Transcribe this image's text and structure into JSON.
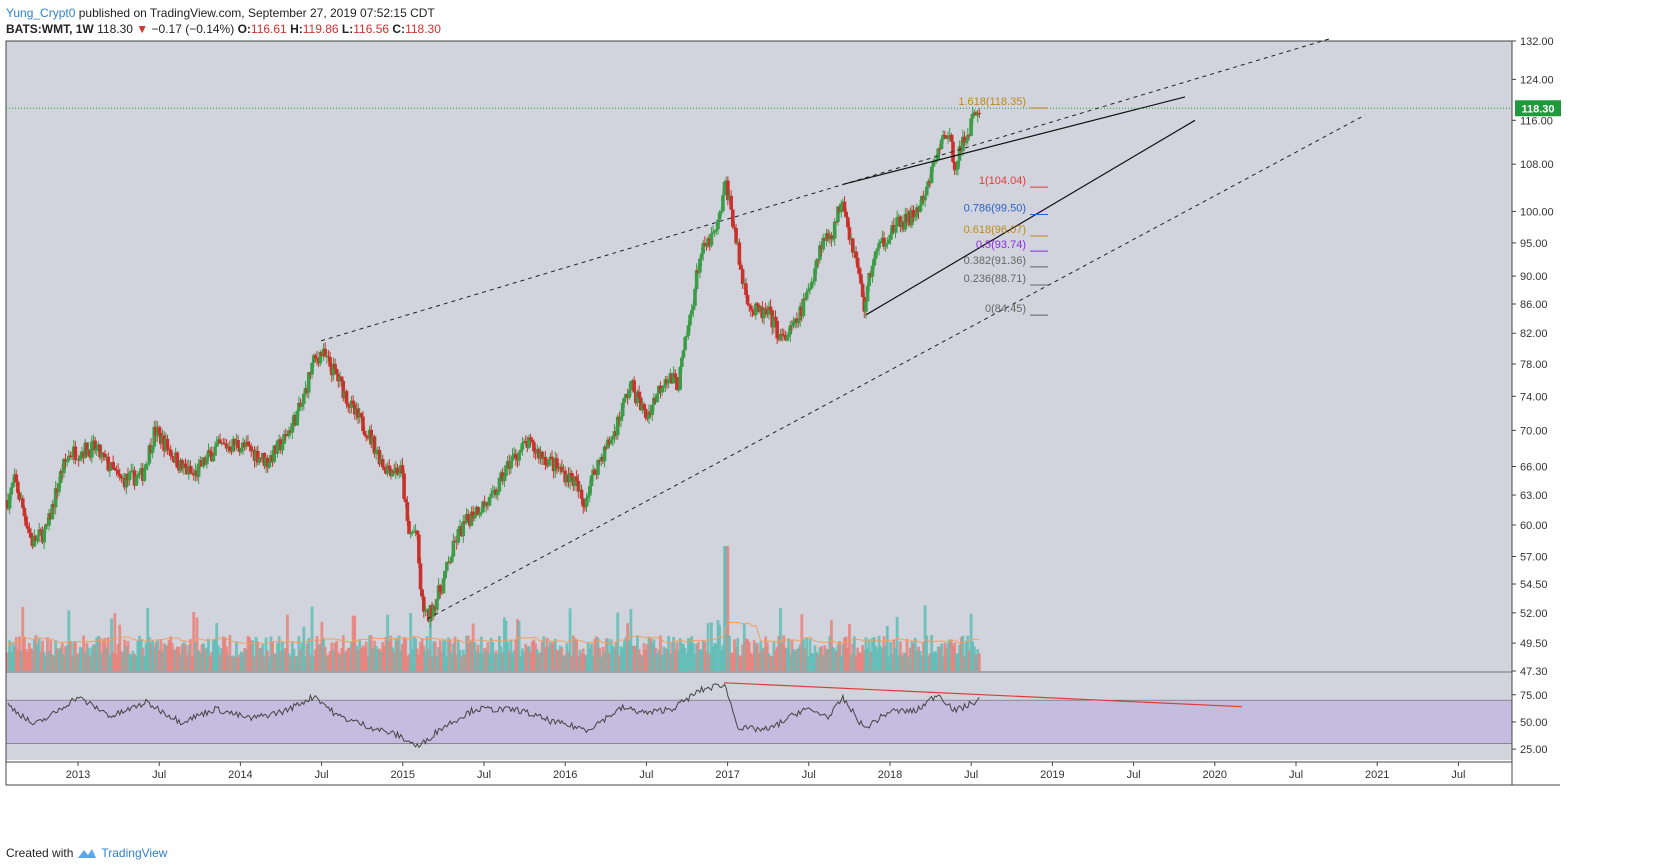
{
  "header": {
    "author": "Yung_Crypt0",
    "published": "published on TradingView.com, September 27, 2019 07:52:15 CDT",
    "symbol": "BATS:WMT, 1W",
    "last": "118.30",
    "change": "−0.17 (−0.14%)",
    "o_label": "O:",
    "o_value": "116.61",
    "h_label": "H:",
    "h_value": "119.86",
    "l_label": "L:",
    "l_value": "116.56",
    "c_label": "C:",
    "c_value": "118.30"
  },
  "footer": {
    "created_with": "Created with",
    "brand": "TradingView"
  },
  "colors": {
    "up": "#3c9c48",
    "down": "#c8322c",
    "vol_up": "#5fbcb6",
    "vol_down": "#e8807a",
    "vol_ma": "#f0a060",
    "rsi": "#444444",
    "rsi_band": "#c5bde0",
    "divergence": "#e53935",
    "price_tag": "#1f9a3c",
    "fib_gold": "#c08a18",
    "fib_red": "#e53935",
    "fib_blue": "#2962c8",
    "fib_purple": "#8a2be2",
    "fib_gray": "#666666"
  },
  "chart_data": {
    "type": "candlestick",
    "scale": "log",
    "ylim": [
      47.3,
      132
    ],
    "price_ticks": [
      "132.00",
      "124.00",
      "116.00",
      "108.00",
      "100.00",
      "95.00",
      "90.00",
      "86.00",
      "82.00",
      "78.00",
      "74.00",
      "70.00",
      "66.00",
      "63.00",
      "60.00",
      "57.00",
      "54.50",
      "52.00",
      "49.50",
      "47.30"
    ],
    "time_labels": [
      "2013",
      "Jul",
      "2014",
      "Jul",
      "2015",
      "Jul",
      "2016",
      "Jul",
      "2017",
      "Jul",
      "2018",
      "Jul",
      "2019",
      "Jul",
      "2020",
      "Jul",
      "2021",
      "Jul"
    ],
    "last_price": "118.30",
    "rsi_ticks": [
      "75.00",
      "50.00",
      "25.00"
    ],
    "rsi_band": [
      30,
      70
    ],
    "fib_levels": [
      {
        "label": "1.618(118.35)",
        "value": 118.35,
        "color": "fib_gold"
      },
      {
        "label": "1(104.04)",
        "value": 104.04,
        "color": "fib_red"
      },
      {
        "label": "0.786(99.50)",
        "value": 99.5,
        "color": "fib_blue"
      },
      {
        "label": "0.618(96.07)",
        "value": 96.07,
        "color": "fib_gold"
      },
      {
        "label": "0.5(93.74)",
        "value": 93.74,
        "color": "fib_purple"
      },
      {
        "label": "0.382(91.36)",
        "value": 91.36,
        "color": "fib_gray"
      },
      {
        "label": "0.236(88.71)",
        "value": 88.71,
        "color": "fib_gray"
      },
      {
        "label": "0(84.45)",
        "value": 84.45,
        "color": "fib_gray"
      }
    ],
    "anchors": [
      {
        "t": 0.0,
        "p": 62.5
      },
      {
        "t": 0.08,
        "p": 64.5
      },
      {
        "t": 0.28,
        "p": 58.3
      },
      {
        "t": 0.45,
        "p": 59.5
      },
      {
        "t": 0.62,
        "p": 65.5
      },
      {
        "t": 0.72,
        "p": 67.5
      },
      {
        "t": 1.0,
        "p": 68.0
      },
      {
        "t": 1.3,
        "p": 64.5
      },
      {
        "t": 1.55,
        "p": 65.0
      },
      {
        "t": 1.7,
        "p": 70.0
      },
      {
        "t": 2.0,
        "p": 66.0
      },
      {
        "t": 2.15,
        "p": 65.0
      },
      {
        "t": 2.4,
        "p": 68.0
      },
      {
        "t": 2.65,
        "p": 68.5
      },
      {
        "t": 2.85,
        "p": 67.5
      },
      {
        "t": 3.0,
        "p": 66.5
      },
      {
        "t": 3.2,
        "p": 69.0
      },
      {
        "t": 3.4,
        "p": 73.0
      },
      {
        "t": 3.52,
        "p": 78.0
      },
      {
        "t": 3.62,
        "p": 79.5
      },
      {
        "t": 3.8,
        "p": 76.5
      },
      {
        "t": 4.0,
        "p": 72.0
      },
      {
        "t": 4.15,
        "p": 70.0
      },
      {
        "t": 4.35,
        "p": 66.0
      },
      {
        "t": 4.55,
        "p": 65.5
      },
      {
        "t": 4.63,
        "p": 59.0
      },
      {
        "t": 4.72,
        "p": 59.5
      },
      {
        "t": 4.78,
        "p": 53.0
      },
      {
        "t": 4.85,
        "p": 51.5
      },
      {
        "t": 5.0,
        "p": 54.0
      },
      {
        "t": 5.2,
        "p": 59.0
      },
      {
        "t": 5.4,
        "p": 61.5
      },
      {
        "t": 5.6,
        "p": 62.5
      },
      {
        "t": 5.8,
        "p": 66.5
      },
      {
        "t": 6.0,
        "p": 68.5
      },
      {
        "t": 6.2,
        "p": 67.0
      },
      {
        "t": 6.4,
        "p": 65.5
      },
      {
        "t": 6.55,
        "p": 64.5
      },
      {
        "t": 6.65,
        "p": 62.0
      },
      {
        "t": 6.8,
        "p": 66.0
      },
      {
        "t": 7.0,
        "p": 69.5
      },
      {
        "t": 7.2,
        "p": 75.5
      },
      {
        "t": 7.38,
        "p": 71.5
      },
      {
        "t": 7.6,
        "p": 76.5
      },
      {
        "t": 7.75,
        "p": 75.5
      },
      {
        "t": 7.9,
        "p": 85.0
      },
      {
        "t": 8.0,
        "p": 93.0
      },
      {
        "t": 8.2,
        "p": 97.0
      },
      {
        "t": 8.3,
        "p": 105.0
      },
      {
        "t": 8.4,
        "p": 97.0
      },
      {
        "t": 8.48,
        "p": 90.0
      },
      {
        "t": 8.6,
        "p": 85.0
      },
      {
        "t": 8.8,
        "p": 84.5
      },
      {
        "t": 8.95,
        "p": 81.0
      },
      {
        "t": 9.1,
        "p": 83.0
      },
      {
        "t": 9.25,
        "p": 87.5
      },
      {
        "t": 9.4,
        "p": 95.0
      },
      {
        "t": 9.55,
        "p": 97.0
      },
      {
        "t": 9.65,
        "p": 103.0
      },
      {
        "t": 9.72,
        "p": 97.0
      },
      {
        "t": 9.82,
        "p": 91.5
      },
      {
        "t": 9.9,
        "p": 85.5
      },
      {
        "t": 10.0,
        "p": 92.5
      },
      {
        "t": 10.15,
        "p": 96.0
      },
      {
        "t": 10.3,
        "p": 98.0
      },
      {
        "t": 10.45,
        "p": 99.0
      },
      {
        "t": 10.6,
        "p": 102.0
      },
      {
        "t": 10.72,
        "p": 109.0
      },
      {
        "t": 10.85,
        "p": 114.0
      },
      {
        "t": 10.95,
        "p": 108.0
      },
      {
        "t": 11.05,
        "p": 112.0
      },
      {
        "t": 11.15,
        "p": 116.0
      },
      {
        "t": 11.22,
        "p": 118.3
      }
    ],
    "rsi_anchors": [
      {
        "t": 0.0,
        "p": 66
      },
      {
        "t": 0.3,
        "p": 47
      },
      {
        "t": 0.5,
        "p": 56
      },
      {
        "t": 0.8,
        "p": 73
      },
      {
        "t": 1.2,
        "p": 55
      },
      {
        "t": 1.6,
        "p": 68
      },
      {
        "t": 2.0,
        "p": 50
      },
      {
        "t": 2.4,
        "p": 62
      },
      {
        "t": 2.8,
        "p": 53
      },
      {
        "t": 3.2,
        "p": 60
      },
      {
        "t": 3.55,
        "p": 74
      },
      {
        "t": 3.8,
        "p": 56
      },
      {
        "t": 4.2,
        "p": 45
      },
      {
        "t": 4.5,
        "p": 38
      },
      {
        "t": 4.75,
        "p": 27
      },
      {
        "t": 5.0,
        "p": 44
      },
      {
        "t": 5.4,
        "p": 62
      },
      {
        "t": 5.9,
        "p": 61
      },
      {
        "t": 6.3,
        "p": 50
      },
      {
        "t": 6.7,
        "p": 43
      },
      {
        "t": 7.1,
        "p": 63
      },
      {
        "t": 7.4,
        "p": 58
      },
      {
        "t": 7.7,
        "p": 63
      },
      {
        "t": 8.0,
        "p": 79
      },
      {
        "t": 8.28,
        "p": 85
      },
      {
        "t": 8.45,
        "p": 44
      },
      {
        "t": 8.8,
        "p": 43
      },
      {
        "t": 9.2,
        "p": 62
      },
      {
        "t": 9.5,
        "p": 55
      },
      {
        "t": 9.65,
        "p": 72
      },
      {
        "t": 9.9,
        "p": 44
      },
      {
        "t": 10.2,
        "p": 60
      },
      {
        "t": 10.5,
        "p": 60
      },
      {
        "t": 10.75,
        "p": 76
      },
      {
        "t": 10.95,
        "p": 60
      },
      {
        "t": 11.22,
        "p": 70
      }
    ]
  }
}
